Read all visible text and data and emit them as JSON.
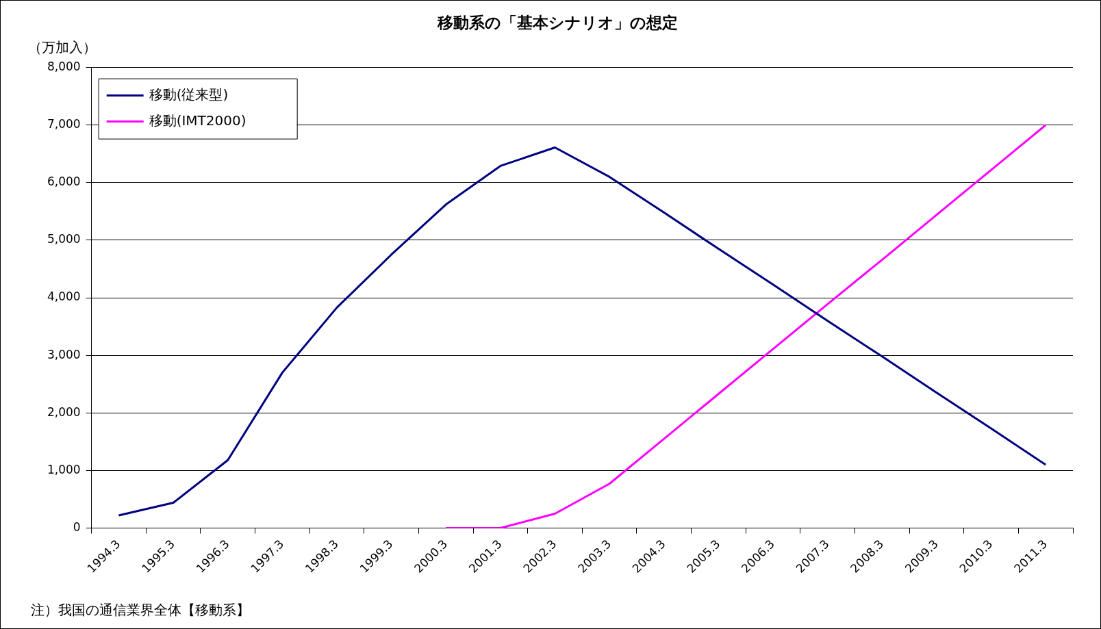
{
  "chart_data": {
    "type": "line",
    "title": "移動系の「基本シナリオ」の想定",
    "ylabel": "（万加入）",
    "categories": [
      "1994.3",
      "1995.3",
      "1996.3",
      "1997.3",
      "1998.3",
      "1999.3",
      "2000.3",
      "2001.3",
      "2002.3",
      "2003.3",
      "2004.3",
      "2005.3",
      "2006.3",
      "2007.3",
      "2008.3",
      "2009.3",
      "2010.3",
      "2011.3"
    ],
    "series": [
      {
        "name": "移動(従来型)",
        "color": "#000080",
        "values": [
          220,
          440,
          1180,
          2700,
          3830,
          4750,
          5620,
          6290,
          6610,
          6100,
          5480,
          4850,
          4230,
          3600,
          2980,
          2350,
          1730,
          1100
        ]
      },
      {
        "name": "移動(IMT2000)",
        "color": "#ff00ff",
        "values": [
          null,
          null,
          null,
          null,
          null,
          null,
          0,
          0,
          250,
          770,
          1550,
          2330,
          3110,
          3890,
          4660,
          5440,
          6220,
          7000
        ]
      }
    ],
    "ylim": [
      0,
      8000
    ],
    "yticks": [
      {
        "value": 0,
        "label": "0"
      },
      {
        "value": 1000,
        "label": "1,000"
      },
      {
        "value": 2000,
        "label": "2,000"
      },
      {
        "value": 3000,
        "label": "3,000"
      },
      {
        "value": 4000,
        "label": "4,000"
      },
      {
        "value": 5000,
        "label": "5,000"
      },
      {
        "value": 6000,
        "label": "6,000"
      },
      {
        "value": 7000,
        "label": "7,000"
      },
      {
        "value": 8000,
        "label": "8,000"
      }
    ],
    "grid": "y",
    "legend": "top left",
    "marker": "none",
    "line_style": "solid",
    "annotations": [
      "注）我国の通信業界全体【移動系】"
    ]
  }
}
